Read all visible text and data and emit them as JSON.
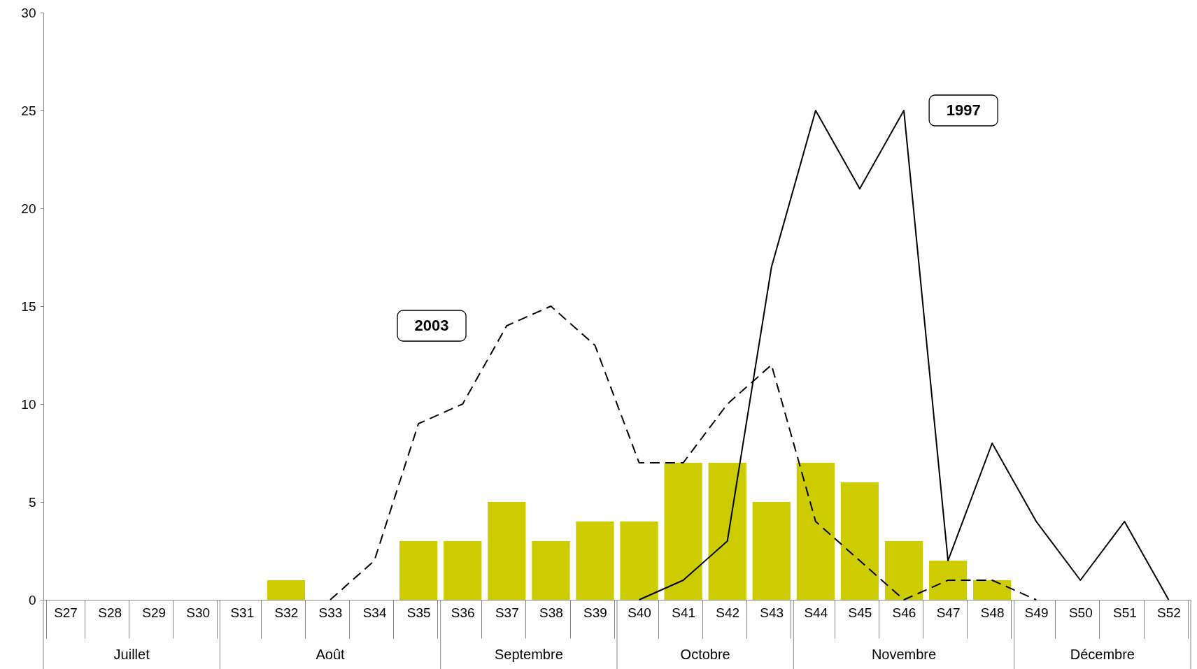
{
  "chart_data": {
    "type": "bar",
    "categories": [
      "S27",
      "S28",
      "S29",
      "S30",
      "S31",
      "S32",
      "S33",
      "S34",
      "S35",
      "S36",
      "S37",
      "S38",
      "S39",
      "S40",
      "S41",
      "S42",
      "S43",
      "S44",
      "S45",
      "S46",
      "S47",
      "S48",
      "S49",
      "S50",
      "S51",
      "S52"
    ],
    "series": [
      {
        "color": "#cccc00",
        "values": [
          null,
          null,
          null,
          null,
          null,
          1,
          null,
          null,
          3,
          3,
          5,
          3,
          4,
          4,
          7,
          7,
          5,
          7,
          6,
          3,
          2,
          1,
          null,
          null,
          null,
          null
        ]
      },
      {
        "name": "1997",
        "type": "line",
        "line_style": "solid",
        "color": "#000000",
        "values": [
          null,
          null,
          null,
          null,
          null,
          null,
          null,
          null,
          null,
          null,
          null,
          null,
          null,
          0,
          1,
          3,
          17,
          25,
          21,
          25,
          2,
          8,
          4,
          1,
          4,
          0
        ]
      },
      {
        "name": "2003",
        "type": "line",
        "line_style": "dashed",
        "color": "#000000",
        "values": [
          null,
          null,
          null,
          null,
          null,
          null,
          0,
          2,
          9,
          10,
          14,
          15,
          13,
          7,
          7,
          10,
          12,
          4,
          2,
          0,
          1,
          1,
          0,
          null,
          null,
          null
        ]
      }
    ],
    "annotations": [
      "Juillet",
      "Août",
      "Septembre",
      "Octobre",
      "Novembre",
      "Décembre"
    ],
    "ylim": [
      0,
      30
    ],
    "yticks": [
      0,
      5,
      10,
      15,
      20,
      25,
      30
    ]
  }
}
